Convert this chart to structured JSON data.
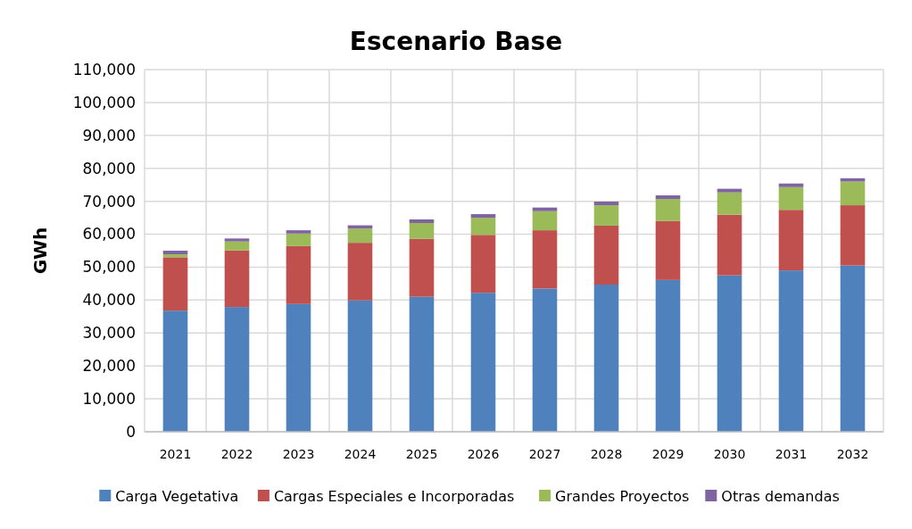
{
  "chart_data": {
    "type": "bar",
    "stacked": true,
    "title": "Escenario Base",
    "ylabel": "GWh",
    "categories": [
      "2021",
      "2022",
      "2023",
      "2024",
      "2025",
      "2026",
      "2027",
      "2028",
      "2029",
      "2030",
      "2031",
      "2032"
    ],
    "series": [
      {
        "name": "Carga Vegetativa",
        "color": "#4f81bd",
        "values": [
          36800,
          37900,
          38800,
          39900,
          41000,
          42200,
          43500,
          44700,
          46100,
          47500,
          49000,
          50500
        ]
      },
      {
        "name": "Cargas Especiales e Incorporadas",
        "color": "#c0504d",
        "values": [
          16200,
          17200,
          17600,
          17500,
          17600,
          17600,
          17700,
          17900,
          17900,
          18400,
          18400,
          18300
        ]
      },
      {
        "name": "Grandes Proyectos",
        "color": "#9bbb59",
        "values": [
          900,
          2700,
          3800,
          4300,
          4800,
          5200,
          5800,
          6200,
          6700,
          6800,
          6900,
          7200
        ]
      },
      {
        "name": "Otras demandas",
        "color": "#8064a2",
        "values": [
          1100,
          900,
          1000,
          1000,
          1100,
          1100,
          1100,
          1100,
          1100,
          1100,
          1100,
          1000
        ]
      }
    ],
    "ylim": [
      0,
      110000
    ],
    "yticks": [
      {
        "value": 0,
        "label": "0"
      },
      {
        "value": 10000,
        "label": "10,000"
      },
      {
        "value": 20000,
        "label": "20,000"
      },
      {
        "value": 30000,
        "label": "30,000"
      },
      {
        "value": 40000,
        "label": "40,000"
      },
      {
        "value": 50000,
        "label": "50,000"
      },
      {
        "value": 60000,
        "label": "60,000"
      },
      {
        "value": 70000,
        "label": "70,000"
      },
      {
        "value": 80000,
        "label": "80,000"
      },
      {
        "value": 90000,
        "label": "90,000"
      },
      {
        "value": 100000,
        "label": "100,000"
      },
      {
        "value": 110000,
        "label": "110,000"
      }
    ],
    "grid": true,
    "legend": "bottom"
  }
}
